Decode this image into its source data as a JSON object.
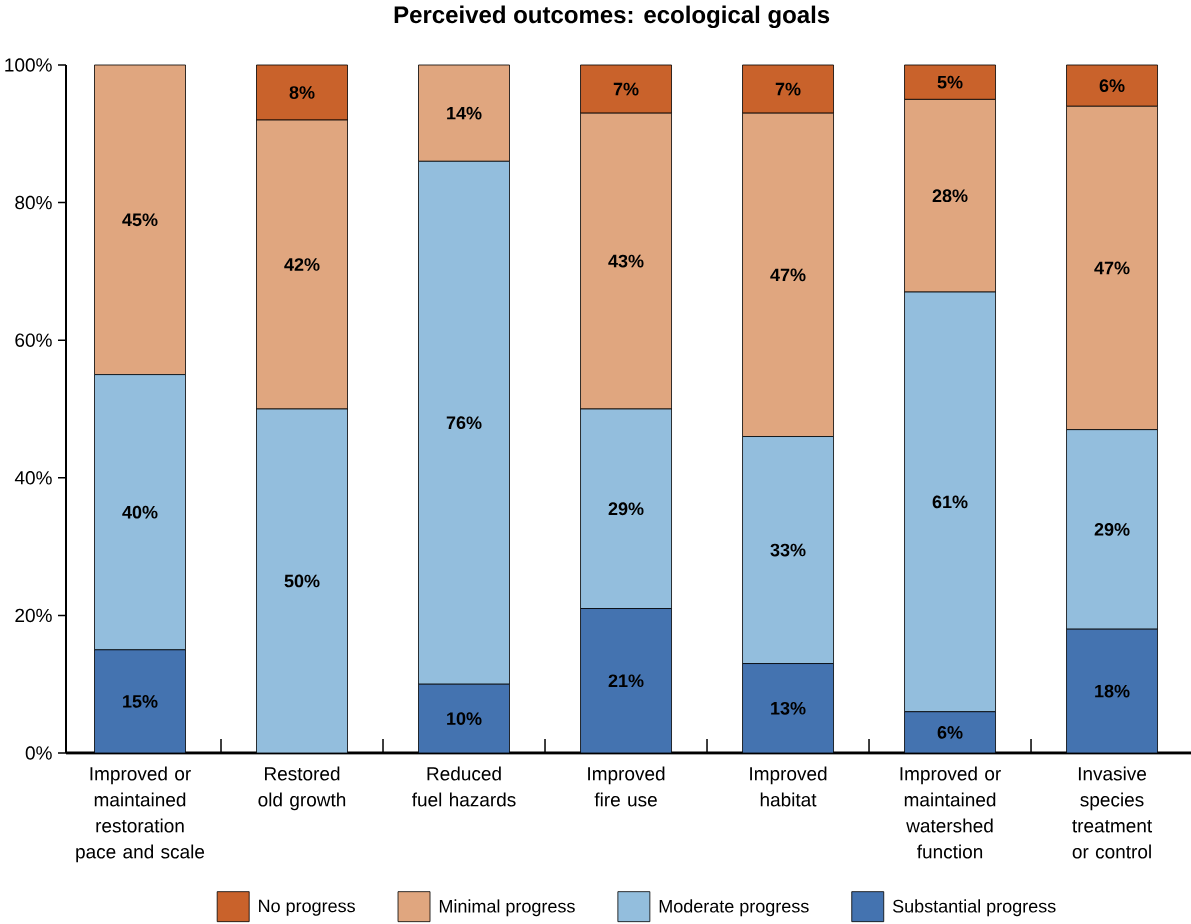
{
  "chart_data": {
    "type": "bar",
    "stacked": true,
    "title": "Perceived outcomes: ecological goals",
    "categories": [
      "Improved or maintained restoration pace and scale",
      "Restored old growth",
      "Reduced fuel hazards",
      "Improved fire use",
      "Improved habitat",
      "Improved or maintained watershed function",
      "Invasive species treatment or control"
    ],
    "series": [
      {
        "name": "Substantial progress",
        "color": "#4473b0",
        "values": [
          15,
          0,
          10,
          21,
          13,
          6,
          18
        ],
        "value_labels": [
          "15%",
          null,
          "10%",
          "21%",
          "13%",
          "6%",
          "18%"
        ]
      },
      {
        "name": "Moderate progress",
        "color": "#93bedd",
        "values": [
          40,
          50,
          76,
          29,
          33,
          61,
          29
        ],
        "value_labels": [
          "40%",
          "50%",
          "76%",
          "29%",
          "33%",
          "61%",
          "29%"
        ]
      },
      {
        "name": "Minimal progress",
        "color": "#e0a67f",
        "values": [
          45,
          42,
          14,
          43,
          47,
          28,
          47
        ],
        "value_labels": [
          "45%",
          "42%",
          "14%",
          "43%",
          "47%",
          "28%",
          "47%"
        ]
      },
      {
        "name": "No progress",
        "color": "#c9622b",
        "values": [
          0,
          8,
          0,
          7,
          7,
          5,
          6
        ],
        "value_labels": [
          null,
          "8%",
          null,
          "7%",
          "7%",
          "5%",
          "6%"
        ]
      }
    ],
    "ylim": [
      0,
      100
    ],
    "yticks": [
      {
        "value": 0,
        "label": "0%"
      },
      {
        "value": 20,
        "label": "20%"
      },
      {
        "value": 40,
        "label": "40%"
      },
      {
        "value": 60,
        "label": "60%"
      },
      {
        "value": 80,
        "label": "80%"
      },
      {
        "value": 100,
        "label": "100%"
      }
    ],
    "legend": "bottom"
  }
}
